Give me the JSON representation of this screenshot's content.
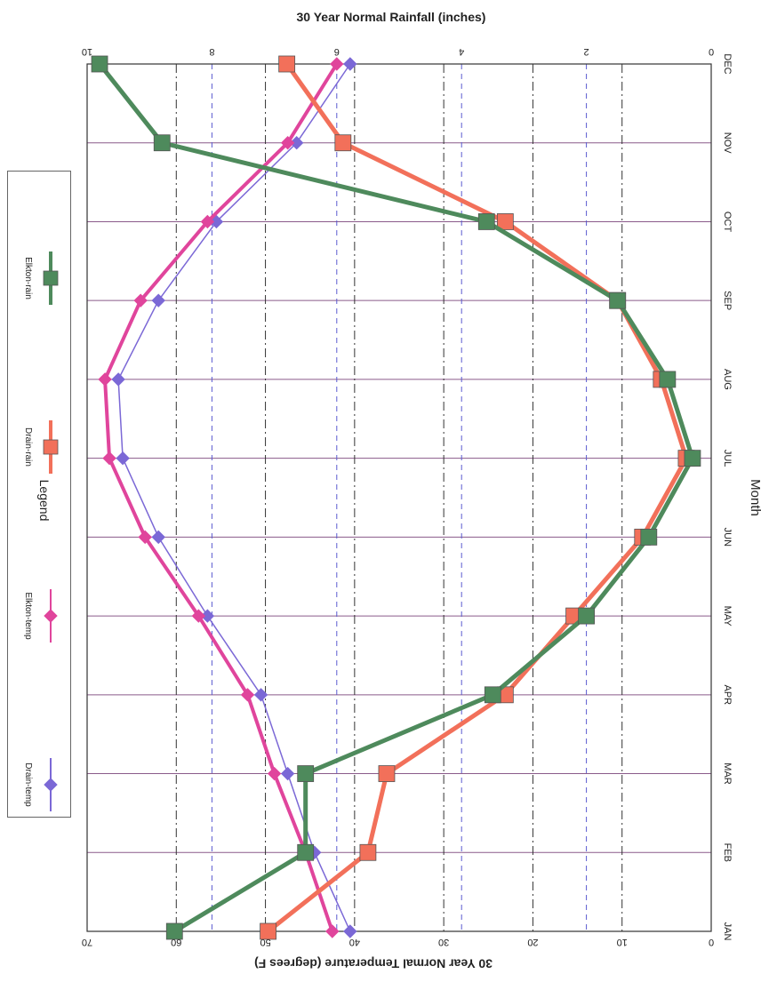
{
  "chart_data": {
    "type": "line",
    "orientation": "rotated-90-clockwise",
    "title": "30 Year Normal Rainfall (inches)",
    "xlabel": "Month",
    "y_temp_label": "30 Year Normal Temperature (degrees F)",
    "categories": [
      "JAN",
      "FEB",
      "MAR",
      "APR",
      "MAY",
      "JUN",
      "JUL",
      "AUG",
      "SEP",
      "OCT",
      "NOV",
      "DEC"
    ],
    "temp_axis": {
      "ylim": [
        0,
        70
      ],
      "ticks": [
        "0",
        "10",
        "20",
        "30",
        "40",
        "50",
        "60",
        "70"
      ]
    },
    "rain_axis": {
      "ylim": [
        0,
        10
      ],
      "ticks": [
        "0",
        "2",
        "4",
        "6",
        "8",
        "10"
      ]
    },
    "legend_title": "Legend",
    "legend_placement": "left",
    "grid": true,
    "series": [
      {
        "name": "Drain-temp",
        "axis": "temp",
        "marker": "diamond",
        "color": "#7b68d6",
        "values": [
          40.5,
          44.5,
          47.5,
          50.5,
          56.5,
          62,
          66,
          66.5,
          62,
          55.5,
          46.5,
          40.5
        ]
      },
      {
        "name": "Elkton-temp",
        "axis": "temp",
        "marker": "diamond",
        "color": "#e0459c",
        "values": [
          42.5,
          45.5,
          49,
          52,
          57.5,
          63.5,
          67.5,
          68,
          64,
          56.5,
          47.5,
          42
        ]
      },
      {
        "name": "Drain-rain",
        "axis": "rain",
        "marker": "square",
        "color": "#f2705a",
        "values": [
          7.1,
          5.5,
          5.2,
          3.3,
          2.2,
          1.1,
          0.4,
          0.8,
          1.5,
          3.3,
          5.9,
          6.8
        ]
      },
      {
        "name": "Elkton-rain",
        "axis": "rain",
        "marker": "square",
        "color": "#4e8a5c",
        "values": [
          8.6,
          6.5,
          6.5,
          3.5,
          2.0,
          1.0,
          0.3,
          0.7,
          1.5,
          3.6,
          8.8,
          9.8
        ]
      }
    ]
  }
}
